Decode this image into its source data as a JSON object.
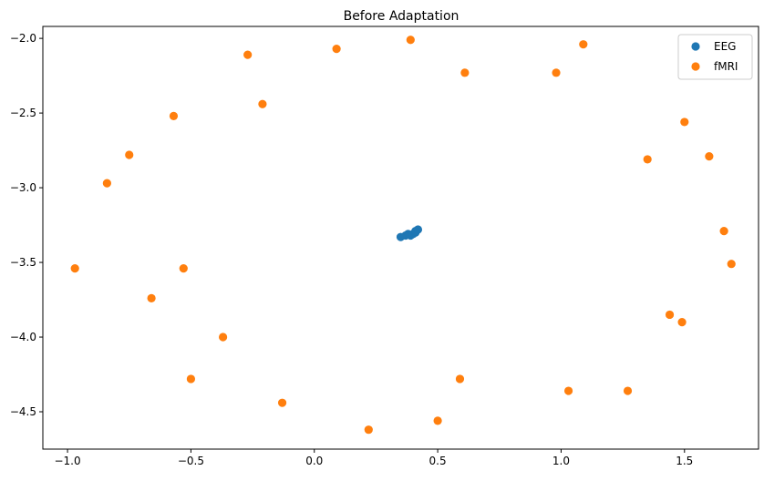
{
  "chart_data": {
    "type": "scatter",
    "title": "Before Adaptation",
    "xlabel": "",
    "ylabel": "",
    "xlim": [
      -1.1,
      1.8
    ],
    "ylim": [
      -4.75,
      -1.92
    ],
    "xticks": [
      -1.0,
      -0.5,
      0.0,
      0.5,
      1.0,
      1.5
    ],
    "xtick_labels": [
      "−1.0",
      "−0.5",
      "0.0",
      "0.5",
      "1.0",
      "1.5"
    ],
    "yticks": [
      -2.0,
      -2.5,
      -3.0,
      -3.5,
      -4.0,
      -4.5
    ],
    "ytick_labels": [
      "−2.0",
      "−2.5",
      "−3.0",
      "−3.5",
      "−4.0",
      "−4.5"
    ],
    "grid": false,
    "legend_position": "top-right",
    "series": [
      {
        "name": "EEG",
        "color": "#1f77b4",
        "points": [
          {
            "x": 0.35,
            "y": -3.33
          },
          {
            "x": 0.37,
            "y": -3.32
          },
          {
            "x": 0.38,
            "y": -3.31
          },
          {
            "x": 0.39,
            "y": -3.32
          },
          {
            "x": 0.4,
            "y": -3.31
          },
          {
            "x": 0.41,
            "y": -3.3
          },
          {
            "x": 0.41,
            "y": -3.29
          },
          {
            "x": 0.42,
            "y": -3.28
          }
        ]
      },
      {
        "name": "fMRI",
        "color": "#ff7f0e",
        "points": [
          {
            "x": 0.39,
            "y": -2.01
          },
          {
            "x": 1.09,
            "y": -2.04
          },
          {
            "x": 0.09,
            "y": -2.07
          },
          {
            "x": -0.27,
            "y": -2.11
          },
          {
            "x": 0.61,
            "y": -2.23
          },
          {
            "x": 0.98,
            "y": -2.23
          },
          {
            "x": -0.21,
            "y": -2.44
          },
          {
            "x": -0.57,
            "y": -2.52
          },
          {
            "x": 1.5,
            "y": -2.56
          },
          {
            "x": -0.75,
            "y": -2.78
          },
          {
            "x": 1.6,
            "y": -2.79
          },
          {
            "x": 1.35,
            "y": -2.81
          },
          {
            "x": -0.84,
            "y": -2.97
          },
          {
            "x": 1.66,
            "y": -3.29
          },
          {
            "x": 1.69,
            "y": -3.51
          },
          {
            "x": -0.97,
            "y": -3.54
          },
          {
            "x": -0.53,
            "y": -3.54
          },
          {
            "x": -0.66,
            "y": -3.74
          },
          {
            "x": 1.44,
            "y": -3.85
          },
          {
            "x": 1.49,
            "y": -3.9
          },
          {
            "x": -0.37,
            "y": -4.0
          },
          {
            "x": -0.5,
            "y": -4.28
          },
          {
            "x": 0.59,
            "y": -4.28
          },
          {
            "x": 1.03,
            "y": -4.36
          },
          {
            "x": 1.27,
            "y": -4.36
          },
          {
            "x": -0.13,
            "y": -4.44
          },
          {
            "x": 0.5,
            "y": -4.56
          },
          {
            "x": 0.22,
            "y": -4.62
          }
        ]
      }
    ]
  }
}
